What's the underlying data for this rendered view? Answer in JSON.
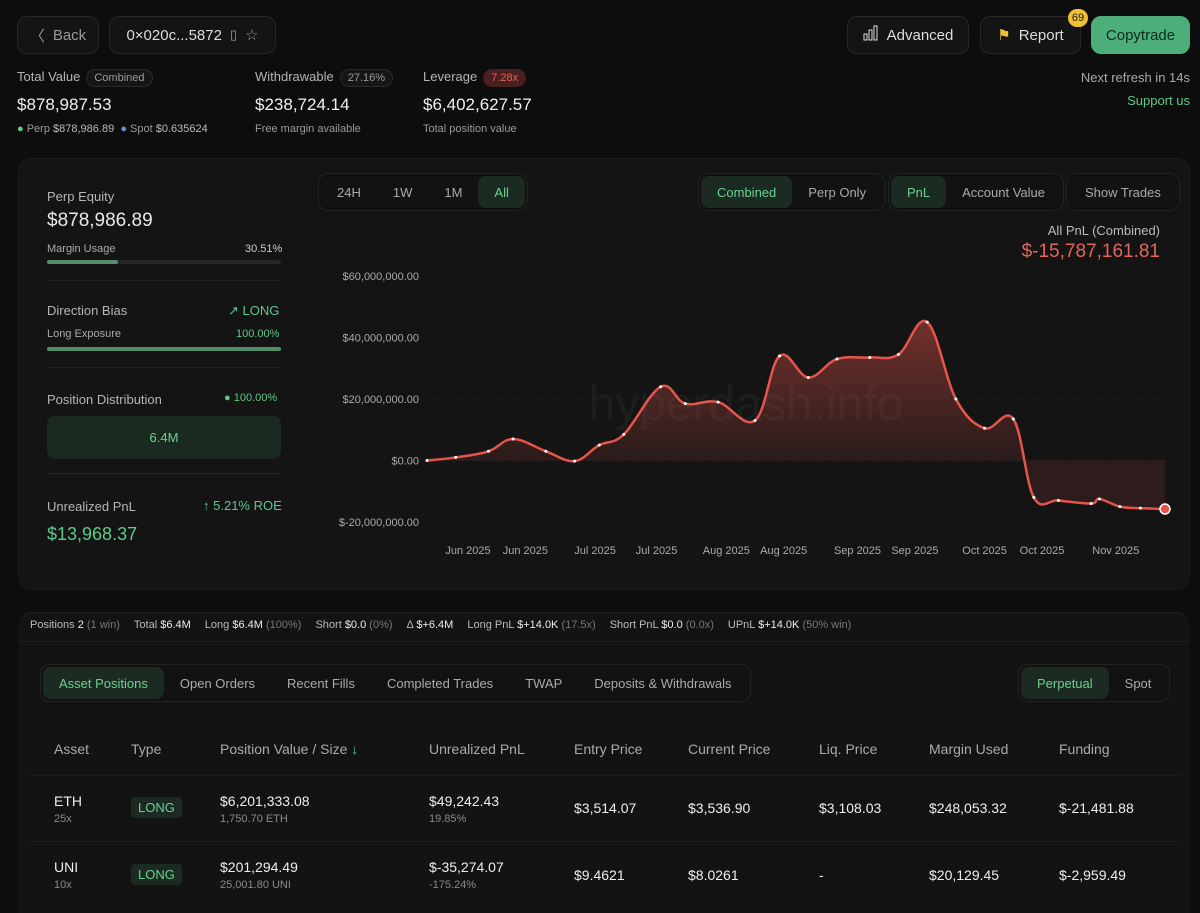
{
  "header": {
    "back_label": "Back",
    "address": "0×020c...5872",
    "advanced_label": "Advanced",
    "report_label": "Report",
    "report_badge": "69",
    "copytrade_label": "Copytrade",
    "refresh_text": "Next refresh in 14s",
    "support_label": "Support us"
  },
  "stats": {
    "total_value": {
      "label": "Total Value",
      "badge": "Combined",
      "value": "$878,987.53",
      "perp_label": "Perp",
      "perp_value": "$878,986.89",
      "spot_label": "Spot",
      "spot_value": "$0.635624"
    },
    "withdrawable": {
      "label": "Withdrawable",
      "badge": "27.16%",
      "value": "$238,724.14",
      "sub": "Free margin available"
    },
    "leverage": {
      "label": "Leverage",
      "badge": "7.28x",
      "value": "$6,402,627.57",
      "sub": "Total position value"
    }
  },
  "left_panel": {
    "perp_equity_label": "Perp Equity",
    "perp_equity": "$878,986.89",
    "margin_usage_label": "Margin Usage",
    "margin_usage": "30.51%",
    "margin_usage_pct": 30.51,
    "direction_label": "Direction Bias",
    "direction": "LONG",
    "long_exposure_label": "Long Exposure",
    "long_exposure": "100.00%",
    "long_exposure_pct": 100,
    "distribution_label": "Position Distribution",
    "distribution_pct": "100.00%",
    "distribution_value": "6.4M",
    "upnl_label": "Unrealized PnL",
    "roe": "5.21% ROE",
    "upnl": "$13,968.37"
  },
  "chart_controls": {
    "ranges": [
      "24H",
      "1W",
      "1M",
      "All"
    ],
    "active_range": "All",
    "modes": [
      "Combined",
      "Perp Only"
    ],
    "metrics": [
      "PnL",
      "Account Value"
    ],
    "show_trades": "Show Trades"
  },
  "chart_data": {
    "type": "area",
    "title": "All PnL (Combined)",
    "headline_value": "$-15,787,161.81",
    "watermark": "hyperdash.info",
    "ylim": [
      -20000000,
      60000000
    ],
    "xlim": [
      0,
      180
    ],
    "y_ticks": [
      {
        "value": 60000000,
        "label": "$60,000,000.00"
      },
      {
        "value": 40000000,
        "label": "$40,000,000.00"
      },
      {
        "value": 20000000,
        "label": "$20,000,000.00"
      },
      {
        "value": 0,
        "label": "$0.00"
      },
      {
        "value": -20000000,
        "label": "$-20,000,000.00"
      }
    ],
    "x_ticks": [
      {
        "value": 10,
        "label": "Jun 2025"
      },
      {
        "value": 24,
        "label": "Jun 2025"
      },
      {
        "value": 41,
        "label": "Jul 2025"
      },
      {
        "value": 56,
        "label": "Jul 2025"
      },
      {
        "value": 73,
        "label": "Aug 2025"
      },
      {
        "value": 87,
        "label": "Aug 2025"
      },
      {
        "value": 105,
        "label": "Sep 2025"
      },
      {
        "value": 119,
        "label": "Sep 2025"
      },
      {
        "value": 136,
        "label": "Oct 2025"
      },
      {
        "value": 150,
        "label": "Oct 2025"
      },
      {
        "value": 168,
        "label": "Nov 2025"
      }
    ],
    "series": [
      {
        "name": "PnL",
        "color": "#e5554c",
        "x": [
          0,
          7,
          15,
          21,
          29,
          36,
          42,
          48,
          57,
          63,
          71,
          80,
          86,
          93,
          100,
          108,
          115,
          122,
          129,
          136,
          143,
          148,
          154,
          162,
          164,
          169,
          174,
          180
        ],
        "y": [
          0,
          1000000,
          3000000,
          7000000,
          3000000,
          -200000,
          5000000,
          8500000,
          24000000,
          18500000,
          19000000,
          13000000,
          34000000,
          27000000,
          33000000,
          33500000,
          34500000,
          45000000,
          20000000,
          10500000,
          13500000,
          -12000000,
          -13000000,
          -14000000,
          -12500000,
          -15000000,
          -15500000,
          -15787161.81
        ]
      }
    ]
  },
  "summary": {
    "positions_label": "Positions",
    "positions": "2",
    "positions_note": "(1 win)",
    "total_label": "Total",
    "total": "$6.4M",
    "long_label": "Long",
    "long": "$6.4M",
    "long_note": "(100%)",
    "short_label": "Short",
    "short": "$0.0",
    "short_note": "(0%)",
    "delta_label": "Δ",
    "delta": "$+6.4M",
    "long_pnl_label": "Long PnL",
    "long_pnl": "$+14.0K",
    "long_pnl_note": "(17.5x)",
    "short_pnl_label": "Short PnL",
    "short_pnl": "$0.0",
    "short_pnl_note": "(0.0x)",
    "upnl_label": "UPnL",
    "upnl": "$+14.0K",
    "upnl_note": "(50% win)"
  },
  "tabs": [
    "Asset Positions",
    "Open Orders",
    "Recent Fills",
    "Completed Trades",
    "TWAP",
    "Deposits & Withdrawals"
  ],
  "market_tabs": [
    "Perpetual",
    "Spot"
  ],
  "table": {
    "columns": [
      "Asset",
      "Type",
      "Position Value / Size",
      "Unrealized PnL",
      "Entry Price",
      "Current Price",
      "Liq. Price",
      "Margin Used",
      "Funding"
    ],
    "rows": [
      {
        "asset": "ETH",
        "leverage": "25x",
        "type": "LONG",
        "value": "$6,201,333.08",
        "size": "1,750.70 ETH",
        "upnl": "$49,242.43",
        "upnl_pct": "19.85%",
        "entry": "$3,514.07",
        "current": "$3,536.90",
        "liq": "$3,108.03",
        "margin": "$248,053.32",
        "funding": "$-21,481.88"
      },
      {
        "asset": "UNI",
        "leverage": "10x",
        "type": "LONG",
        "value": "$201,294.49",
        "size": "25,001.80 UNI",
        "upnl": "$-35,274.07",
        "upnl_pct": "-175.24%",
        "entry": "$9.4621",
        "current": "$8.0261",
        "liq": "-",
        "margin": "$20,129.45",
        "funding": "$-2,959.49"
      }
    ]
  }
}
